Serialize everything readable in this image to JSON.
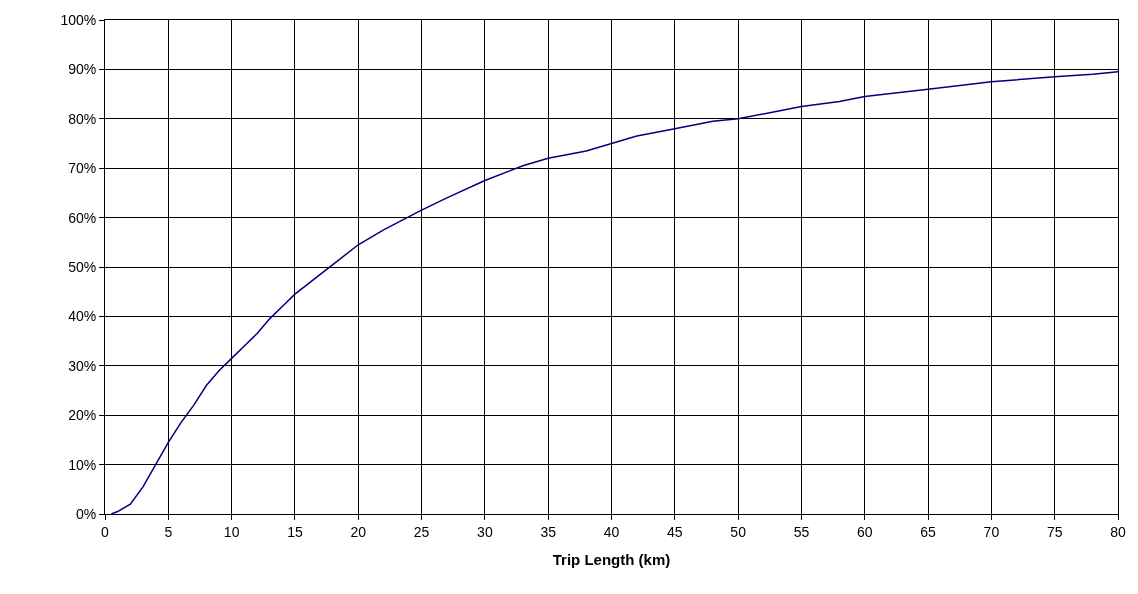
{
  "chart_data": {
    "type": "line",
    "xlabel": "Trip Length (km)",
    "x": [
      0.5,
      1,
      2,
      3,
      4,
      5,
      6,
      7,
      8,
      9,
      10,
      11,
      12,
      13,
      14,
      15,
      17,
      20,
      22,
      25,
      27,
      30,
      33,
      35,
      38,
      40,
      42,
      45,
      48,
      50,
      53,
      55,
      58,
      60,
      65,
      70,
      75,
      78,
      80
    ],
    "series": [
      {
        "color": "#000080",
        "values": [
          0,
          0.5,
          2,
          5.5,
          10,
          14.5,
          18.5,
          22,
          26,
          29,
          31.5,
          34,
          36.5,
          39.5,
          42,
          44.5,
          48.5,
          54.5,
          57.5,
          61.5,
          64,
          67.5,
          70.5,
          72,
          73.5,
          75,
          76.5,
          78,
          79.5,
          80,
          81.5,
          82.5,
          83.5,
          84.5,
          86,
          87.5,
          88.5,
          89,
          89.5
        ]
      }
    ],
    "xlim": [
      0,
      80
    ],
    "xticks": [
      0,
      5,
      10,
      15,
      20,
      25,
      30,
      35,
      40,
      45,
      50,
      55,
      60,
      65,
      70,
      75,
      80
    ],
    "ylim": [
      0,
      100
    ],
    "yticks": [
      {
        "value": 0,
        "label": "0%"
      },
      {
        "value": 10,
        "label": "10%"
      },
      {
        "value": 20,
        "label": "20%"
      },
      {
        "value": 30,
        "label": "30%"
      },
      {
        "value": 40,
        "label": "40%"
      },
      {
        "value": 50,
        "label": "50%"
      },
      {
        "value": 60,
        "label": "60%"
      },
      {
        "value": 70,
        "label": "70%"
      },
      {
        "value": 80,
        "label": "80%"
      },
      {
        "value": 90,
        "label": "90%"
      },
      {
        "value": 100,
        "label": "100%"
      }
    ],
    "grid": true,
    "line_style": "solid"
  }
}
